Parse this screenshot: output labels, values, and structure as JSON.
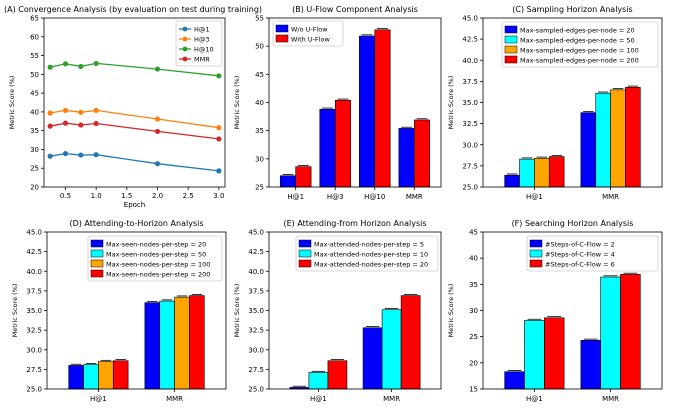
{
  "chart_data": [
    {
      "type": "line",
      "title": "(A) Convergence Analysis (by evaluation on test during training)",
      "xlabel": "Epoch",
      "ylabel": "Metric Score (%)",
      "xlim": [
        0.15,
        3.1
      ],
      "ylim": [
        20,
        65
      ],
      "x_ticks": [
        "0.5",
        "1.0",
        "1.5",
        "2.0",
        "2.5",
        "3.0"
      ],
      "y_ticks": [
        "20",
        "25",
        "30",
        "35",
        "40",
        "45",
        "50",
        "55",
        "60",
        "65"
      ],
      "legend": "top-right",
      "x": [
        0.25,
        0.5,
        0.75,
        1.0,
        2.0,
        3.0
      ],
      "series": [
        {
          "name": "H@1",
          "color": "#1f77b4",
          "values": [
            28.2,
            28.9,
            28.5,
            28.6,
            26.2,
            24.3
          ]
        },
        {
          "name": "H@3",
          "color": "#ff7f0e",
          "values": [
            39.7,
            40.4,
            39.9,
            40.4,
            38.1,
            35.8
          ]
        },
        {
          "name": "H@10",
          "color": "#2ca02c",
          "values": [
            51.9,
            52.8,
            52.1,
            52.9,
            51.4,
            49.6
          ]
        },
        {
          "name": "MMR",
          "color": "#d62728",
          "values": [
            36.2,
            37.0,
            36.5,
            36.9,
            34.8,
            32.8
          ]
        }
      ]
    },
    {
      "type": "bar",
      "title": "(B) U-Flow Component Analysis",
      "xlabel": "",
      "ylabel": "Metric Score (%)",
      "ylim": [
        25,
        55
      ],
      "y_ticks": [
        "25",
        "30",
        "35",
        "40",
        "45",
        "50",
        "55"
      ],
      "legend": "top-left",
      "categories": [
        "H@1",
        "H@3",
        "H@10",
        "MMR"
      ],
      "series": [
        {
          "name": "W/o U-Flow",
          "color": "#0000ff",
          "values": [
            27.0,
            38.8,
            51.8,
            35.4
          ]
        },
        {
          "name": "With U-Flow",
          "color": "#ff0000",
          "values": [
            28.6,
            40.4,
            52.9,
            36.9
          ]
        }
      ]
    },
    {
      "type": "bar",
      "title": "(C) Sampling Horizon Analysis",
      "xlabel": "",
      "ylabel": "Metric Score (%)",
      "ylim": [
        25,
        45
      ],
      "y_ticks": [
        "25.0",
        "27.5",
        "30.0",
        "32.5",
        "35.0",
        "37.5",
        "40.0",
        "42.5",
        "45.0"
      ],
      "legend": "top-right",
      "categories": [
        "H@1",
        "MMR"
      ],
      "series": [
        {
          "name": "Max-sampled-edges-per-node = 20",
          "color": "#0000ff",
          "values": [
            26.4,
            33.8
          ]
        },
        {
          "name": "Max-sampled-edges-per-node = 50",
          "color": "#00ffff",
          "values": [
            28.3,
            36.1
          ]
        },
        {
          "name": "Max-sampled-edges-per-node = 100",
          "color": "#ffa500",
          "values": [
            28.4,
            36.5
          ]
        },
        {
          "name": "Max-sampled-edges-per-node = 200",
          "color": "#ff0000",
          "values": [
            28.6,
            36.8
          ]
        }
      ]
    },
    {
      "type": "bar",
      "title": "(D) Attending-to-Horizon Analysis",
      "xlabel": "",
      "ylabel": "Metric Score (%)",
      "ylim": [
        25,
        45
      ],
      "y_ticks": [
        "25.0",
        "27.5",
        "30.0",
        "32.5",
        "35.0",
        "37.5",
        "40.0",
        "42.5",
        "45.0"
      ],
      "legend": "top-right",
      "categories": [
        "H@1",
        "MMR"
      ],
      "series": [
        {
          "name": "Max-seen-nodes-per-step = 20",
          "color": "#0000ff",
          "values": [
            28.0,
            36.0
          ]
        },
        {
          "name": "Max-seen-nodes-per-step = 50",
          "color": "#00ffff",
          "values": [
            28.1,
            36.2
          ]
        },
        {
          "name": "Max-seen-nodes-per-step = 100",
          "color": "#ffa500",
          "values": [
            28.5,
            36.7
          ]
        },
        {
          "name": "Max-seen-nodes-per-step = 200",
          "color": "#ff0000",
          "values": [
            28.6,
            36.9
          ]
        }
      ]
    },
    {
      "type": "bar",
      "title": "(E) Attending-from Horizon Analysis",
      "xlabel": "",
      "ylabel": "Metric Score (%)",
      "ylim": [
        25,
        45
      ],
      "y_ticks": [
        "25.0",
        "27.5",
        "30.0",
        "32.5",
        "35.0",
        "37.5",
        "40.0",
        "42.5",
        "45.0"
      ],
      "legend": "top-right",
      "categories": [
        "H@1",
        "MMR"
      ],
      "series": [
        {
          "name": "Max-attended-nodes-per-step = 5",
          "color": "#0000ff",
          "values": [
            25.2,
            32.8
          ]
        },
        {
          "name": "Max-attended-nodes-per-step = 10",
          "color": "#00ffff",
          "values": [
            27.1,
            35.1
          ]
        },
        {
          "name": "Max-attended-nodes-per-step = 20",
          "color": "#ff0000",
          "values": [
            28.6,
            36.9
          ]
        }
      ]
    },
    {
      "type": "bar",
      "title": "(F) Searching Horizon Analysis",
      "xlabel": "",
      "ylabel": "Metric Score (%)",
      "ylim": [
        15,
        45
      ],
      "y_ticks": [
        "15",
        "20",
        "25",
        "30",
        "35",
        "40",
        "45"
      ],
      "legend": "top-right",
      "categories": [
        "H@1",
        "MMR"
      ],
      "series": [
        {
          "name": "#Steps-of-C-Flow = 2",
          "color": "#0000ff",
          "values": [
            18.3,
            24.3
          ]
        },
        {
          "name": "#Steps-of-C-Flow = 4",
          "color": "#00ffff",
          "values": [
            28.1,
            36.4
          ]
        },
        {
          "name": "#Steps-of-C-Flow = 6",
          "color": "#ff0000",
          "values": [
            28.6,
            36.9
          ]
        }
      ]
    }
  ]
}
